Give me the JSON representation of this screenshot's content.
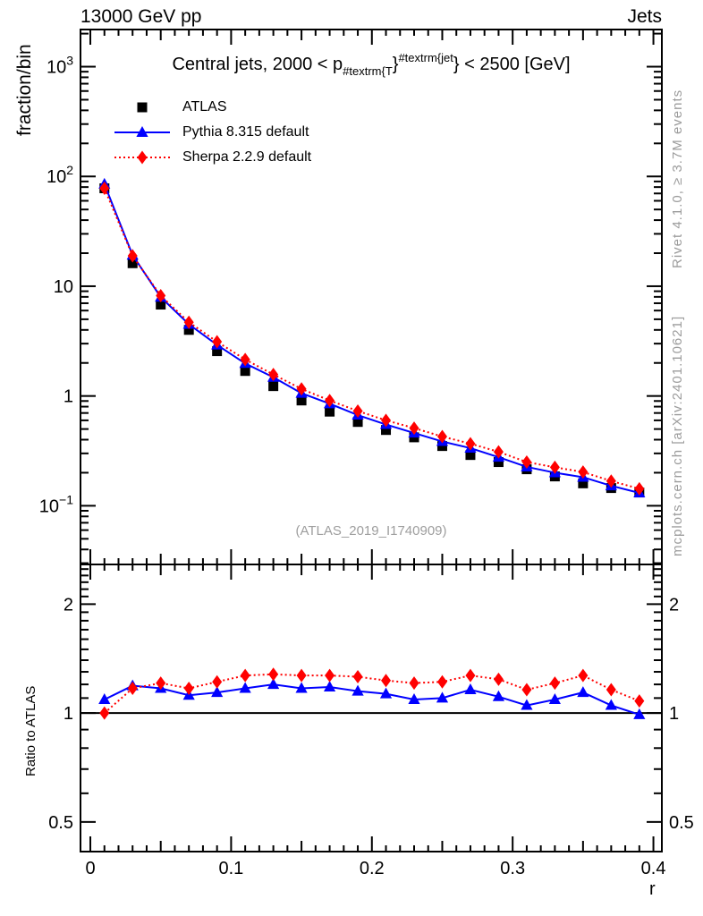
{
  "header": {
    "left": "13000 GeV pp",
    "right": "Jets"
  },
  "title": {
    "prefix": "Central jets, 2000 < p",
    "sub": "#textrm{T",
    "brace1": "}",
    "sup": "#textrm{jet",
    "brace2": "}",
    "suffix": " < 2500 [GeV]"
  },
  "legend": {
    "items": [
      {
        "label": "ATLAS",
        "marker": "square",
        "line": "none",
        "color": "#000000"
      },
      {
        "label": "Pythia 8.315 default",
        "marker": "triangle",
        "line": "solid",
        "color": "#0000ff"
      },
      {
        "label": "Sherpa 2.2.9 default",
        "marker": "diamond",
        "line": "dotted",
        "color": "#ff0000"
      }
    ]
  },
  "watermark": "(ATLAS_2019_I1740909)",
  "side_notes": {
    "top": "Rivet 4.1.0, ≥ 3.7M events",
    "bottom": "mcplots.cern.ch [arXiv:2401.10621]"
  },
  "colors": {
    "atlas": "#000000",
    "pythia": "#0000ff",
    "sherpa": "#ff0000",
    "frame": "#000000",
    "gray_text": "#9c9c9c",
    "watermark": "#9e9e9e"
  },
  "chart_data": [
    {
      "type": "line",
      "panel": "main",
      "ylabel": "fraction/bin",
      "yscale": "log",
      "xscale": "linear",
      "xlim": [
        -0.007,
        0.406
      ],
      "ylim": [
        0.0292,
        2180
      ],
      "x": [
        0.01,
        0.03,
        0.05,
        0.07,
        0.09,
        0.11,
        0.13,
        0.15,
        0.17,
        0.19,
        0.21,
        0.23,
        0.25,
        0.27,
        0.29,
        0.31,
        0.33,
        0.35,
        0.37,
        0.39
      ],
      "series": [
        {
          "name": "ATLAS",
          "color": "#000000",
          "marker": "square",
          "line": "none",
          "values": [
            78,
            16.2,
            6.8,
            4.0,
            2.56,
            1.69,
            1.23,
            0.91,
            0.72,
            0.58,
            0.49,
            0.42,
            0.35,
            0.29,
            0.25,
            0.215,
            0.185,
            0.16,
            0.145,
            0.132
          ]
        },
        {
          "name": "Pythia 8.315 default",
          "color": "#0000ff",
          "marker": "triangle",
          "line": "solid",
          "values": [
            85,
            19.2,
            7.95,
            4.5,
            2.92,
            1.98,
            1.48,
            1.06,
            0.85,
            0.67,
            0.55,
            0.46,
            0.385,
            0.335,
            0.277,
            0.226,
            0.2,
            0.182,
            0.152,
            0.131
          ]
        },
        {
          "name": "Sherpa 2.2.9 default",
          "color": "#ff0000",
          "marker": "diamond",
          "line": "dotted",
          "values": [
            78,
            18.9,
            8.2,
            4.7,
            3.12,
            2.15,
            1.57,
            1.16,
            0.91,
            0.73,
            0.6,
            0.51,
            0.427,
            0.368,
            0.31,
            0.25,
            0.224,
            0.203,
            0.168,
            0.143
          ]
        }
      ],
      "yticks": [
        {
          "value": 1000,
          "base": "10",
          "exp": "3"
        },
        {
          "value": 100,
          "base": "10",
          "exp": "2"
        },
        {
          "value": 10,
          "base": "10",
          "exp": ""
        },
        {
          "value": 1,
          "base": "1",
          "exp": ""
        },
        {
          "value": 0.1,
          "base": "10",
          "exp": "−1"
        }
      ]
    },
    {
      "type": "line",
      "panel": "ratio",
      "ylabel": "Ratio to ATLAS",
      "xlabel": "r",
      "yscale": "log",
      "xscale": "linear",
      "xlim": [
        -0.007,
        0.406
      ],
      "ylim": [
        0.414,
        2.575
      ],
      "reference_line": 1,
      "x": [
        0.01,
        0.03,
        0.05,
        0.07,
        0.09,
        0.11,
        0.13,
        0.15,
        0.17,
        0.19,
        0.21,
        0.23,
        0.25,
        0.27,
        0.29,
        0.31,
        0.33,
        0.35,
        0.37,
        0.39
      ],
      "series": [
        {
          "name": "Pythia 8.315 default / ATLAS",
          "color": "#0000ff",
          "marker": "triangle",
          "line": "solid",
          "values": [
            1.09,
            1.19,
            1.17,
            1.12,
            1.14,
            1.17,
            1.2,
            1.17,
            1.18,
            1.15,
            1.13,
            1.09,
            1.1,
            1.16,
            1.11,
            1.05,
            1.09,
            1.14,
            1.05,
            0.99
          ]
        },
        {
          "name": "Sherpa 2.2.9 default / ATLAS",
          "color": "#ff0000",
          "marker": "diamond",
          "line": "dotted",
          "values": [
            1.0,
            1.17,
            1.21,
            1.17,
            1.22,
            1.27,
            1.28,
            1.27,
            1.27,
            1.26,
            1.23,
            1.21,
            1.22,
            1.27,
            1.24,
            1.16,
            1.21,
            1.27,
            1.16,
            1.08
          ]
        }
      ],
      "yticks": [
        {
          "value": 2,
          "label": "2"
        },
        {
          "value": 1,
          "label": "1"
        },
        {
          "value": 0.5,
          "label": "0.5"
        }
      ],
      "xticks": [
        {
          "value": 0,
          "label": "0"
        },
        {
          "value": 0.1,
          "label": "0.1"
        },
        {
          "value": 0.2,
          "label": "0.2"
        },
        {
          "value": 0.3,
          "label": "0.3"
        },
        {
          "value": 0.4,
          "label": "0.4"
        }
      ]
    }
  ]
}
